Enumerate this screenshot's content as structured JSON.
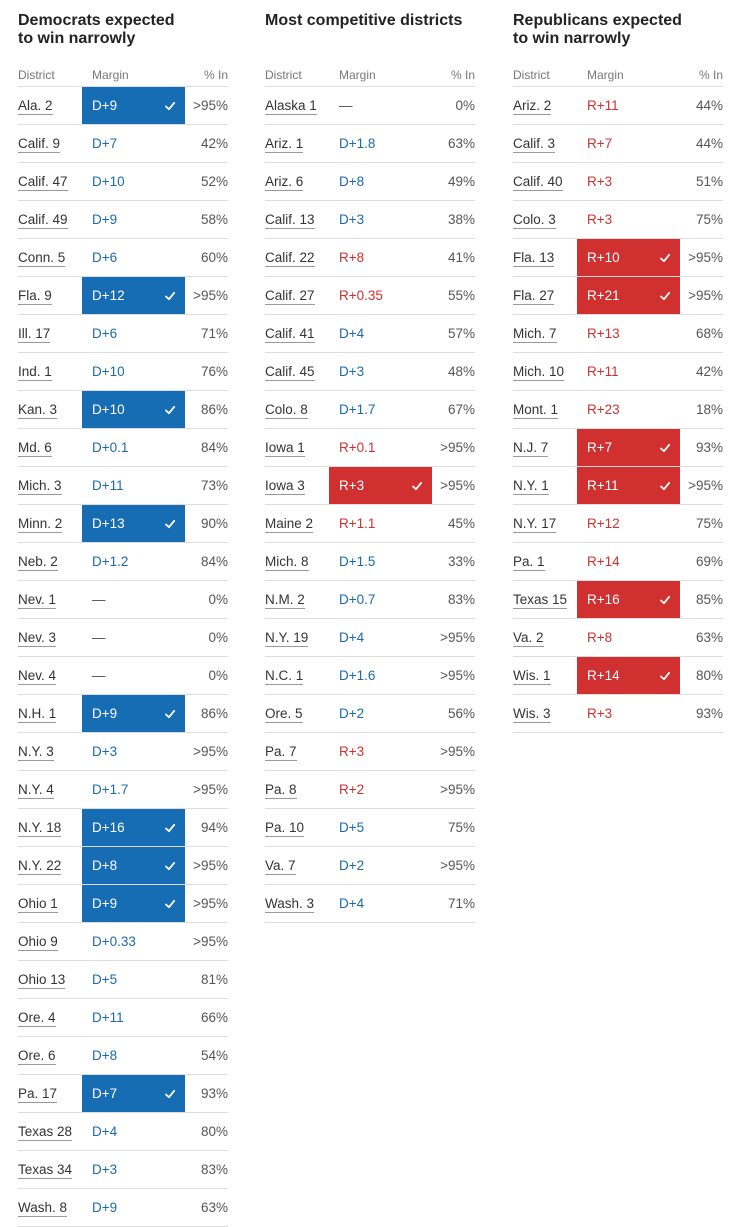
{
  "colors": {
    "dem": "#1a6ab0",
    "rep": "#d0312d",
    "dem_called_bg": "#176db4",
    "rep_called_bg": "#d0302f"
  },
  "headers": {
    "district": "District",
    "margin": "Margin",
    "pct_in": "% In"
  },
  "columns": [
    {
      "title_line1": "Democrats expected",
      "title_line2": "to win narrowly",
      "rows": [
        {
          "district": "Ala. 2",
          "margin": "D+9",
          "party": "dem",
          "called": true,
          "pct": ">95%"
        },
        {
          "district": "Calif. 9",
          "margin": "D+7",
          "party": "dem",
          "called": false,
          "pct": "42%"
        },
        {
          "district": "Calif. 47",
          "margin": "D+10",
          "party": "dem",
          "called": false,
          "pct": "52%"
        },
        {
          "district": "Calif. 49",
          "margin": "D+9",
          "party": "dem",
          "called": false,
          "pct": "58%"
        },
        {
          "district": "Conn. 5",
          "margin": "D+6",
          "party": "dem",
          "called": false,
          "pct": "60%"
        },
        {
          "district": "Fla. 9",
          "margin": "D+12",
          "party": "dem",
          "called": true,
          "pct": ">95%"
        },
        {
          "district": "Ill. 17",
          "margin": "D+6",
          "party": "dem",
          "called": false,
          "pct": "71%"
        },
        {
          "district": "Ind. 1",
          "margin": "D+10",
          "party": "dem",
          "called": false,
          "pct": "76%"
        },
        {
          "district": "Kan. 3",
          "margin": "D+10",
          "party": "dem",
          "called": true,
          "pct": "86%"
        },
        {
          "district": "Md. 6",
          "margin": "D+0.1",
          "party": "dem",
          "called": false,
          "pct": "84%"
        },
        {
          "district": "Mich. 3",
          "margin": "D+11",
          "party": "dem",
          "called": false,
          "pct": "73%"
        },
        {
          "district": "Minn. 2",
          "margin": "D+13",
          "party": "dem",
          "called": true,
          "pct": "90%"
        },
        {
          "district": "Neb. 2",
          "margin": "D+1.2",
          "party": "dem",
          "called": false,
          "pct": "84%"
        },
        {
          "district": "Nev. 1",
          "margin": "—",
          "party": "none",
          "called": false,
          "pct": "0%"
        },
        {
          "district": "Nev. 3",
          "margin": "—",
          "party": "none",
          "called": false,
          "pct": "0%"
        },
        {
          "district": "Nev. 4",
          "margin": "—",
          "party": "none",
          "called": false,
          "pct": "0%"
        },
        {
          "district": "N.H. 1",
          "margin": "D+9",
          "party": "dem",
          "called": true,
          "pct": "86%"
        },
        {
          "district": "N.Y. 3",
          "margin": "D+3",
          "party": "dem",
          "called": false,
          "pct": ">95%"
        },
        {
          "district": "N.Y. 4",
          "margin": "D+1.7",
          "party": "dem",
          "called": false,
          "pct": ">95%"
        },
        {
          "district": "N.Y. 18",
          "margin": "D+16",
          "party": "dem",
          "called": true,
          "pct": "94%"
        },
        {
          "district": "N.Y. 22",
          "margin": "D+8",
          "party": "dem",
          "called": true,
          "pct": ">95%"
        },
        {
          "district": "Ohio 1",
          "margin": "D+9",
          "party": "dem",
          "called": true,
          "pct": ">95%"
        },
        {
          "district": "Ohio 9",
          "margin": "D+0.33",
          "party": "dem",
          "called": false,
          "pct": ">95%"
        },
        {
          "district": "Ohio 13",
          "margin": "D+5",
          "party": "dem",
          "called": false,
          "pct": "81%"
        },
        {
          "district": "Ore. 4",
          "margin": "D+11",
          "party": "dem",
          "called": false,
          "pct": "66%"
        },
        {
          "district": "Ore. 6",
          "margin": "D+8",
          "party": "dem",
          "called": false,
          "pct": "54%"
        },
        {
          "district": "Pa. 17",
          "margin": "D+7",
          "party": "dem",
          "called": true,
          "pct": "93%"
        },
        {
          "district": "Texas 28",
          "margin": "D+4",
          "party": "dem",
          "called": false,
          "pct": "80%"
        },
        {
          "district": "Texas 34",
          "margin": "D+3",
          "party": "dem",
          "called": false,
          "pct": "83%"
        },
        {
          "district": "Wash. 8",
          "margin": "D+9",
          "party": "dem",
          "called": false,
          "pct": "63%"
        }
      ]
    },
    {
      "title_line1": "Most competitive districts",
      "title_line2": "",
      "rows": [
        {
          "district": "Alaska 1",
          "margin": "—",
          "party": "none",
          "called": false,
          "pct": "0%"
        },
        {
          "district": "Ariz. 1",
          "margin": "D+1.8",
          "party": "dem",
          "called": false,
          "pct": "63%"
        },
        {
          "district": "Ariz. 6",
          "margin": "D+8",
          "party": "dem",
          "called": false,
          "pct": "49%"
        },
        {
          "district": "Calif. 13",
          "margin": "D+3",
          "party": "dem",
          "called": false,
          "pct": "38%"
        },
        {
          "district": "Calif. 22",
          "margin": "R+8",
          "party": "rep",
          "called": false,
          "pct": "41%"
        },
        {
          "district": "Calif. 27",
          "margin": "R+0.35",
          "party": "rep",
          "called": false,
          "pct": "55%"
        },
        {
          "district": "Calif. 41",
          "margin": "D+4",
          "party": "dem",
          "called": false,
          "pct": "57%"
        },
        {
          "district": "Calif. 45",
          "margin": "D+3",
          "party": "dem",
          "called": false,
          "pct": "48%"
        },
        {
          "district": "Colo. 8",
          "margin": "D+1.7",
          "party": "dem",
          "called": false,
          "pct": "67%"
        },
        {
          "district": "Iowa 1",
          "margin": "R+0.1",
          "party": "rep",
          "called": false,
          "pct": ">95%"
        },
        {
          "district": "Iowa 3",
          "margin": "R+3",
          "party": "rep",
          "called": true,
          "pct": ">95%"
        },
        {
          "district": "Maine 2",
          "margin": "R+1.1",
          "party": "rep",
          "called": false,
          "pct": "45%"
        },
        {
          "district": "Mich. 8",
          "margin": "D+1.5",
          "party": "dem",
          "called": false,
          "pct": "33%"
        },
        {
          "district": "N.M. 2",
          "margin": "D+0.7",
          "party": "dem",
          "called": false,
          "pct": "83%"
        },
        {
          "district": "N.Y. 19",
          "margin": "D+4",
          "party": "dem",
          "called": false,
          "pct": ">95%"
        },
        {
          "district": "N.C. 1",
          "margin": "D+1.6",
          "party": "dem",
          "called": false,
          "pct": ">95%"
        },
        {
          "district": "Ore. 5",
          "margin": "D+2",
          "party": "dem",
          "called": false,
          "pct": "56%"
        },
        {
          "district": "Pa. 7",
          "margin": "R+3",
          "party": "rep",
          "called": false,
          "pct": ">95%"
        },
        {
          "district": "Pa. 8",
          "margin": "R+2",
          "party": "rep",
          "called": false,
          "pct": ">95%"
        },
        {
          "district": "Pa. 10",
          "margin": "D+5",
          "party": "dem",
          "called": false,
          "pct": "75%"
        },
        {
          "district": "Va. 7",
          "margin": "D+2",
          "party": "dem",
          "called": false,
          "pct": ">95%"
        },
        {
          "district": "Wash. 3",
          "margin": "D+4",
          "party": "dem",
          "called": false,
          "pct": "71%"
        }
      ]
    },
    {
      "title_line1": "Republicans expected",
      "title_line2": "to win narrowly",
      "rows": [
        {
          "district": "Ariz. 2",
          "margin": "R+11",
          "party": "rep",
          "called": false,
          "pct": "44%"
        },
        {
          "district": "Calif. 3",
          "margin": "R+7",
          "party": "rep",
          "called": false,
          "pct": "44%"
        },
        {
          "district": "Calif. 40",
          "margin": "R+3",
          "party": "rep",
          "called": false,
          "pct": "51%"
        },
        {
          "district": "Colo. 3",
          "margin": "R+3",
          "party": "rep",
          "called": false,
          "pct": "75%"
        },
        {
          "district": "Fla. 13",
          "margin": "R+10",
          "party": "rep",
          "called": true,
          "pct": ">95%"
        },
        {
          "district": "Fla. 27",
          "margin": "R+21",
          "party": "rep",
          "called": true,
          "pct": ">95%"
        },
        {
          "district": "Mich. 7",
          "margin": "R+13",
          "party": "rep",
          "called": false,
          "pct": "68%"
        },
        {
          "district": "Mich. 10",
          "margin": "R+11",
          "party": "rep",
          "called": false,
          "pct": "42%"
        },
        {
          "district": "Mont. 1",
          "margin": "R+23",
          "party": "rep",
          "called": false,
          "pct": "18%"
        },
        {
          "district": "N.J. 7",
          "margin": "R+7",
          "party": "rep",
          "called": true,
          "pct": "93%"
        },
        {
          "district": "N.Y. 1",
          "margin": "R+11",
          "party": "rep",
          "called": true,
          "pct": ">95%"
        },
        {
          "district": "N.Y. 17",
          "margin": "R+12",
          "party": "rep",
          "called": false,
          "pct": "75%"
        },
        {
          "district": "Pa. 1",
          "margin": "R+14",
          "party": "rep",
          "called": false,
          "pct": "69%"
        },
        {
          "district": "Texas 15",
          "margin": "R+16",
          "party": "rep",
          "called": true,
          "pct": "85%"
        },
        {
          "district": "Va. 2",
          "margin": "R+8",
          "party": "rep",
          "called": false,
          "pct": "63%"
        },
        {
          "district": "Wis. 1",
          "margin": "R+14",
          "party": "rep",
          "called": true,
          "pct": "80%"
        },
        {
          "district": "Wis. 3",
          "margin": "R+3",
          "party": "rep",
          "called": false,
          "pct": "93%"
        }
      ]
    }
  ]
}
